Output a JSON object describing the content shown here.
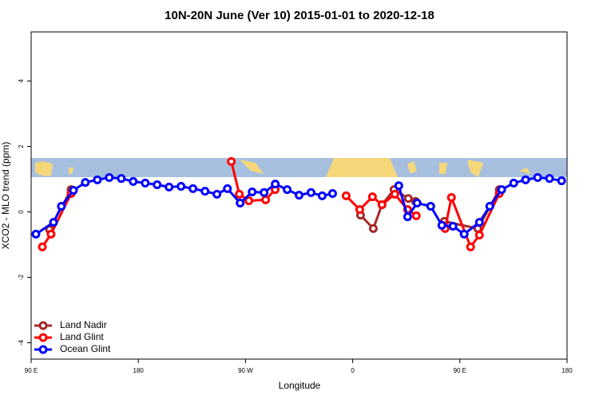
{
  "chart_data": {
    "type": "line",
    "title": "10N-20N June (Ver 10)   2015-01-01 to 2020-12-18",
    "x_label": "Longitude",
    "y_label": "XCO2 - MLO trend (ppm)",
    "xlim": [
      90,
      540
    ],
    "xticks": [
      {
        "value": 90,
        "label": "90 E"
      },
      180,
      {
        "value": 270,
        "label": "90 W"
      },
      {
        "value": 360,
        "label": "0"
      },
      {
        "value": 450,
        "label": "90 E"
      },
      {
        "value": 540,
        "label": "180"
      }
    ],
    "ylim": [
      -4.5,
      5.5
    ],
    "yticks": [
      -4,
      -2,
      0,
      2,
      4
    ],
    "legend": "bottom-left",
    "series": [
      {
        "name": "Land Nadir",
        "color": "#a52a2a",
        "x": [
          105.4,
          123.5,
          null,
          366.6,
          377.3,
          384.6,
          394.7,
          406.7,
          412.7,
          null,
          436.9,
          465.1,
          483.1
        ],
        "values": [
          -0.54,
          0.68,
          null,
          -0.1,
          -0.51,
          0.22,
          0.68,
          0.41,
          0.32,
          null,
          -0.29,
          -0.51,
          0.68
        ]
      },
      {
        "name": "Land Glint",
        "color": "#ff0000",
        "x": [
          99.4,
          106.7,
          123.5,
          null,
          258.1,
          264.8,
          272.8,
          286.9,
          294.9,
          null,
          354.5,
          365.9,
          376.6,
          384.6,
          395.4,
          406.1,
          413.4,
          null,
          437.6,
          442.9,
          459.0,
          466.4,
          483.1
        ],
        "values": [
          -1.07,
          -0.68,
          0.56,
          null,
          1.54,
          0.54,
          0.34,
          0.37,
          0.68,
          null,
          0.49,
          0.07,
          0.46,
          0.22,
          0.54,
          0.07,
          -0.12,
          null,
          -0.51,
          0.44,
          -1.07,
          -0.71,
          0.56
        ]
      },
      {
        "name": "Ocean Glint",
        "color": "#0000ff",
        "x": [
          94.0,
          108.8,
          115.4,
          125.5,
          135.5,
          145.6,
          155.6,
          165.7,
          175.7,
          185.8,
          195.8,
          205.8,
          215.9,
          225.9,
          236.0,
          246.0,
          254.8,
          265.5,
          275.6,
          285.6,
          295.0,
          305.0,
          315.0,
          325.0,
          334.4,
          343.1,
          null,
          398.7,
          406.1,
          414.1,
          425.5,
          434.9,
          444.2,
          453.6,
          466.4,
          475.1,
          485.1,
          495.2,
          505.2,
          515.3,
          525.3,
          535.4
        ],
        "values": [
          -0.68,
          -0.32,
          0.17,
          0.66,
          0.9,
          0.98,
          1.05,
          1.02,
          0.93,
          0.88,
          0.83,
          0.76,
          0.78,
          0.71,
          0.63,
          0.54,
          0.71,
          0.27,
          0.61,
          0.59,
          0.85,
          0.68,
          0.51,
          0.59,
          0.49,
          0.56,
          null,
          0.8,
          -0.15,
          0.27,
          0.17,
          -0.41,
          -0.44,
          -0.68,
          -0.32,
          0.17,
          0.68,
          0.88,
          0.98,
          1.05,
          1.02,
          0.95
        ]
      }
    ]
  }
}
